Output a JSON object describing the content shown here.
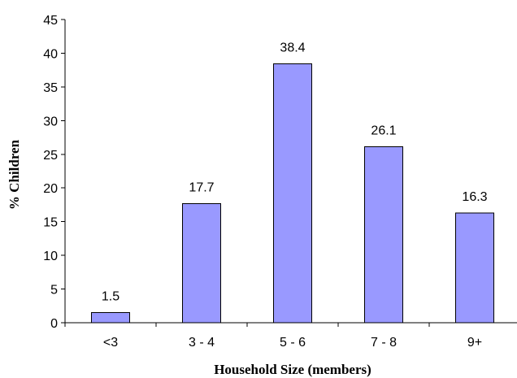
{
  "chart_data": {
    "type": "bar",
    "title": "",
    "xlabel": "Household Size (members)",
    "ylabel": "% Children",
    "categories": [
      "<3",
      "3 - 4",
      "5 - 6",
      "7 - 8",
      "9+"
    ],
    "values": [
      1.5,
      17.7,
      38.4,
      26.1,
      16.3
    ],
    "data_labels": [
      "1.5",
      "17.7",
      "38.4",
      "26.1",
      "16.3"
    ],
    "ylim": [
      0,
      45
    ],
    "yticks": [
      0,
      5,
      10,
      15,
      20,
      25,
      30,
      35,
      40,
      45
    ],
    "grid": false,
    "legend": "none",
    "bar_color": "#9999ff"
  }
}
